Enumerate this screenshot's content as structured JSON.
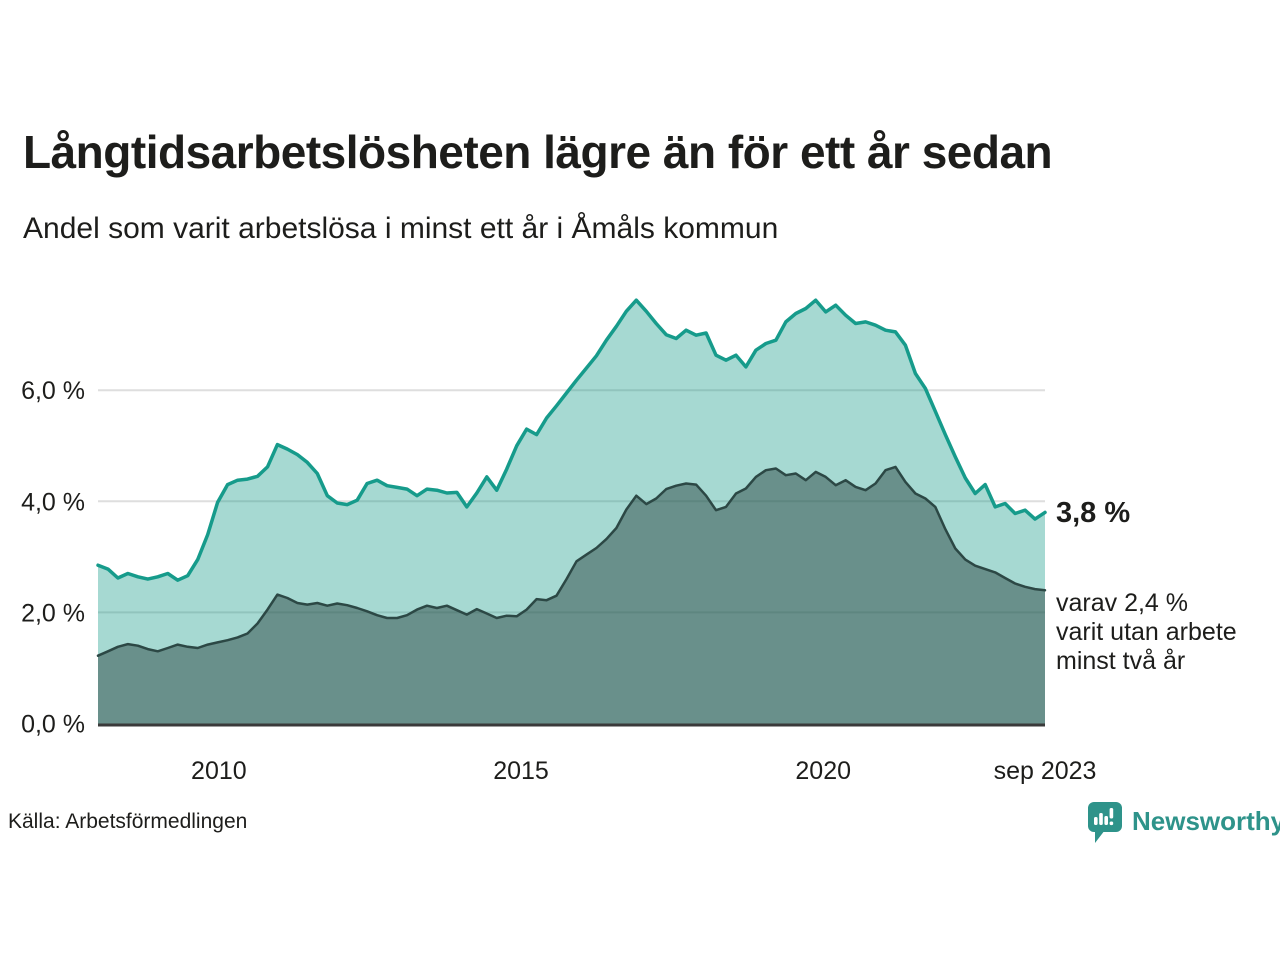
{
  "header": {
    "title": "Långtidsarbetslösheten lägre än för ett år sedan",
    "subtitle": "Andel som varit arbetslösa i minst ett år i Åmåls kommun"
  },
  "annotations": {
    "latest_value": "3,8 %",
    "secondary_lines": [
      "varav 2,4 %",
      "varit utan arbete",
      "minst två år"
    ]
  },
  "footer": {
    "source": "Källa: Arbetsförmedlingen",
    "brand": "Newsworthy"
  },
  "colors": {
    "text": "#1d1d1b",
    "grid": "#dedede",
    "axis_baseline": "#3a3a3a",
    "brand_teal": "#2e938a"
  },
  "chart_data": {
    "type": "area",
    "title": "Långtidsarbetslösheten lägre än för ett år sedan",
    "subtitle": "Andel som varit arbetslösa i minst ett år i Åmåls kommun",
    "x_start": 2008.0,
    "x_end": 2023.67,
    "ylim": [
      0,
      7.8
    ],
    "grid": "horizontal",
    "legend": "none",
    "y_ticks": [
      {
        "v": 0,
        "label": "0,0 %"
      },
      {
        "v": 2,
        "label": "2,0 %"
      },
      {
        "v": 4,
        "label": "4,0 %"
      },
      {
        "v": 6,
        "label": "6,0 %"
      }
    ],
    "x_ticks": [
      {
        "t": 2010.0,
        "label": "2010"
      },
      {
        "t": 2015.0,
        "label": "2015"
      },
      {
        "t": 2020.0,
        "label": "2020"
      },
      {
        "t": 2023.67,
        "label": "sep 2023"
      }
    ],
    "series": [
      {
        "name": "Arbetslösa minst ett år",
        "line_color": "#169b8b",
        "fill_color": "rgba(22,155,138,0.38)",
        "line_width": 3.5,
        "end_label": "3,8 %",
        "values": [
          2.85,
          2.78,
          2.62,
          2.7,
          2.64,
          2.6,
          2.64,
          2.7,
          2.58,
          2.66,
          2.95,
          3.4,
          3.98,
          4.3,
          4.38,
          4.4,
          4.45,
          4.62,
          5.02,
          4.94,
          4.84,
          4.7,
          4.5,
          4.1,
          3.97,
          3.94,
          4.02,
          4.32,
          4.38,
          4.28,
          4.25,
          4.22,
          4.1,
          4.22,
          4.2,
          4.15,
          4.16,
          3.9,
          4.15,
          4.44,
          4.2,
          4.58,
          5.0,
          5.3,
          5.2,
          5.5,
          5.72,
          5.95,
          6.18,
          6.4,
          6.62,
          6.9,
          7.15,
          7.42,
          7.62,
          7.42,
          7.2,
          7.0,
          6.93,
          7.08,
          6.99,
          7.03,
          6.63,
          6.54,
          6.63,
          6.42,
          6.72,
          6.84,
          6.9,
          7.23,
          7.38,
          7.47,
          7.62,
          7.41,
          7.53,
          7.35,
          7.2,
          7.23,
          7.17,
          7.08,
          7.05,
          6.81,
          6.3,
          6.03,
          5.62,
          5.2,
          4.8,
          4.42,
          4.14,
          4.3,
          3.9,
          3.96,
          3.78,
          3.84,
          3.68,
          3.8
        ]
      },
      {
        "name": "Arbetslösa minst två år",
        "line_color": "#2c4845",
        "fill_color": "rgba(44,72,68,0.50)",
        "line_width": 2.5,
        "end_label": "varav 2,4 % varit utan arbete minst två år",
        "values": [
          1.22,
          1.3,
          1.38,
          1.43,
          1.4,
          1.34,
          1.3,
          1.36,
          1.42,
          1.38,
          1.36,
          1.42,
          1.46,
          1.5,
          1.55,
          1.62,
          1.8,
          2.05,
          2.32,
          2.26,
          2.17,
          2.14,
          2.17,
          2.12,
          2.16,
          2.13,
          2.08,
          2.02,
          1.95,
          1.9,
          1.9,
          1.95,
          2.05,
          2.12,
          2.08,
          2.12,
          2.04,
          1.96,
          2.06,
          1.98,
          1.9,
          1.94,
          1.93,
          2.05,
          2.24,
          2.22,
          2.3,
          2.6,
          2.92,
          3.04,
          3.16,
          3.32,
          3.52,
          3.85,
          4.1,
          3.95,
          4.05,
          4.22,
          4.28,
          4.32,
          4.3,
          4.1,
          3.84,
          3.9,
          4.14,
          4.23,
          4.44,
          4.56,
          4.59,
          4.47,
          4.5,
          4.38,
          4.53,
          4.44,
          4.29,
          4.38,
          4.26,
          4.2,
          4.32,
          4.56,
          4.62,
          4.35,
          4.14,
          4.05,
          3.9,
          3.5,
          3.15,
          2.95,
          2.84,
          2.78,
          2.72,
          2.62,
          2.52,
          2.46,
          2.42,
          2.4
        ]
      }
    ]
  }
}
